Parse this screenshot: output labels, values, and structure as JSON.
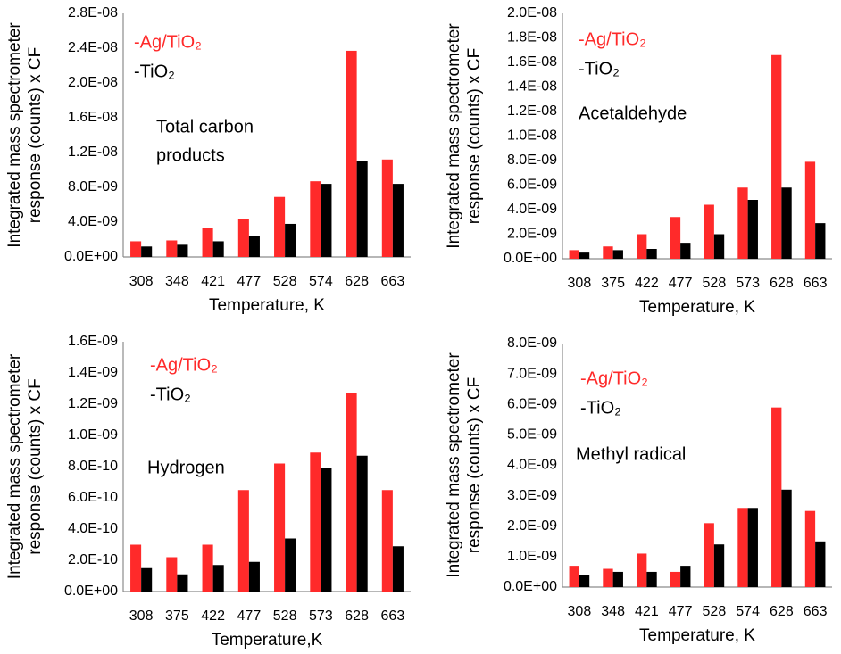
{
  "chart_data": [
    {
      "type": "bar",
      "ylabel": [
        "Integrated  mass spectrometer",
        "response (counts) x CF"
      ],
      "xlabel": "Temperature, K",
      "annotation": [
        "Total carbon",
        "products"
      ],
      "categories": [
        "308",
        "348",
        "421",
        "477",
        "528",
        "574",
        "628",
        "663"
      ],
      "series": [
        {
          "name": "-Ag/TiO₂",
          "color": "#ff2a2a",
          "values": [
            1.8e-09,
            1.9e-09,
            3.3e-09,
            4.4e-09,
            6.9e-09,
            8.7e-09,
            2.37e-08,
            1.12e-08
          ]
        },
        {
          "name": "-TiO₂",
          "color": "#000000",
          "values": [
            1.2e-09,
            1.4e-09,
            1.8e-09,
            2.4e-09,
            3.8e-09,
            8.4e-09,
            1.1e-08,
            8.4e-09
          ]
        }
      ],
      "ylim": [
        0,
        2.8e-08
      ],
      "yticks": [
        {
          "value": 0,
          "label": "0.0E+00"
        },
        {
          "value": 4e-09,
          "label": "4.0E-09"
        },
        {
          "value": 8e-09,
          "label": "8.0E-09"
        },
        {
          "value": 1.2e-08,
          "label": "1.2E-08"
        },
        {
          "value": 1.6e-08,
          "label": "1.6E-08"
        },
        {
          "value": 2e-08,
          "label": "2.0E-08"
        },
        {
          "value": 2.4e-08,
          "label": "2.4E-08"
        },
        {
          "value": 2.8e-08,
          "label": "2.8E-08"
        }
      ]
    },
    {
      "type": "bar",
      "ylabel": [
        "Integrated  mass spectrometer",
        "response (counts) x CF"
      ],
      "xlabel": "Temperature, K",
      "annotation": [
        "Acetaldehyde"
      ],
      "categories": [
        "308",
        "375",
        "422",
        "477",
        "528",
        "573",
        "628",
        "663"
      ],
      "series": [
        {
          "name": "-Ag/TiO₂",
          "color": "#ff2a2a",
          "values": [
            7e-10,
            1e-09,
            2e-09,
            3.4e-09,
            4.4e-09,
            5.8e-09,
            1.66e-08,
            7.9e-09
          ]
        },
        {
          "name": "-TiO₂",
          "color": "#000000",
          "values": [
            5e-10,
            7e-10,
            8e-10,
            1.3e-09,
            2e-09,
            4.8e-09,
            5.8e-09,
            2.9e-09
          ]
        }
      ],
      "ylim": [
        0,
        2e-08
      ],
      "yticks": [
        {
          "value": 0,
          "label": "0.0E+00"
        },
        {
          "value": 2e-09,
          "label": "2.0E-09"
        },
        {
          "value": 4e-09,
          "label": "4.0E-09"
        },
        {
          "value": 6e-09,
          "label": "6.0E-09"
        },
        {
          "value": 8e-09,
          "label": "8.0E-09"
        },
        {
          "value": 1e-08,
          "label": "1.0E-08"
        },
        {
          "value": 1.2e-08,
          "label": "1.2E-08"
        },
        {
          "value": 1.4e-08,
          "label": "1.4E-08"
        },
        {
          "value": 1.6e-08,
          "label": "1.6E-08"
        },
        {
          "value": 1.8e-08,
          "label": "1.8E-08"
        },
        {
          "value": 2e-08,
          "label": "2.0E-08"
        }
      ]
    },
    {
      "type": "bar",
      "ylabel": [
        "Integrated  mass spectrometer",
        "response (counts) x CF"
      ],
      "xlabel": "Temperature,K",
      "annotation": [
        "Hydrogen"
      ],
      "categories": [
        "308",
        "375",
        "422",
        "477",
        "528",
        "573",
        "628",
        "663"
      ],
      "series": [
        {
          "name": "-Ag/TiO₂",
          "color": "#ff2a2a",
          "values": [
            3e-10,
            2.2e-10,
            3e-10,
            6.5e-10,
            8.2e-10,
            8.9e-10,
            1.27e-09,
            6.5e-10
          ]
        },
        {
          "name": "-TiO₂",
          "color": "#000000",
          "values": [
            1.5e-10,
            1.1e-10,
            1.7e-10,
            1.9e-10,
            3.4e-10,
            7.9e-10,
            8.7e-10,
            2.9e-10
          ]
        }
      ],
      "ylim": [
        0,
        1.6e-09
      ],
      "yticks": [
        {
          "value": 0,
          "label": "0.0E+00"
        },
        {
          "value": 2e-10,
          "label": "2.0E-10"
        },
        {
          "value": 4e-10,
          "label": "4.0E-10"
        },
        {
          "value": 6e-10,
          "label": "6.0E-10"
        },
        {
          "value": 8e-10,
          "label": "8.0E-10"
        },
        {
          "value": 1e-09,
          "label": "1.0E-09"
        },
        {
          "value": 1.2e-09,
          "label": "1.2E-09"
        },
        {
          "value": 1.4e-09,
          "label": "1.4E-09"
        },
        {
          "value": 1.6e-09,
          "label": "1.6E-09"
        }
      ]
    },
    {
      "type": "bar",
      "ylabel": [
        "Integrated  mass spectrometer",
        "response (counts) x CF"
      ],
      "xlabel": "Temperature, K",
      "annotation": [
        "Methyl radical"
      ],
      "categories": [
        "308",
        "348",
        "421",
        "477",
        "528",
        "574",
        "628",
        "663"
      ],
      "series": [
        {
          "name": "-Ag/TiO₂",
          "color": "#ff2a2a",
          "values": [
            7e-10,
            6e-10,
            1.1e-09,
            5e-10,
            2.1e-09,
            2.6e-09,
            5.9e-09,
            2.5e-09
          ]
        },
        {
          "name": "-TiO₂",
          "color": "#000000",
          "values": [
            4e-10,
            5e-10,
            5e-10,
            7e-10,
            1.4e-09,
            2.6e-09,
            3.2e-09,
            1.5e-09
          ]
        }
      ],
      "ylim": [
        0,
        8e-09
      ],
      "yticks": [
        {
          "value": 0,
          "label": "0.0E+00"
        },
        {
          "value": 1e-09,
          "label": "1.0E-09"
        },
        {
          "value": 2e-09,
          "label": "2.0E-09"
        },
        {
          "value": 3e-09,
          "label": "3.0E-09"
        },
        {
          "value": 4e-09,
          "label": "4.0E-09"
        },
        {
          "value": 5e-09,
          "label": "5.0E-09"
        },
        {
          "value": 6e-09,
          "label": "6.0E-09"
        },
        {
          "value": 7e-09,
          "label": "7.0E-09"
        },
        {
          "value": 8e-09,
          "label": "8.0E-09"
        }
      ]
    }
  ]
}
